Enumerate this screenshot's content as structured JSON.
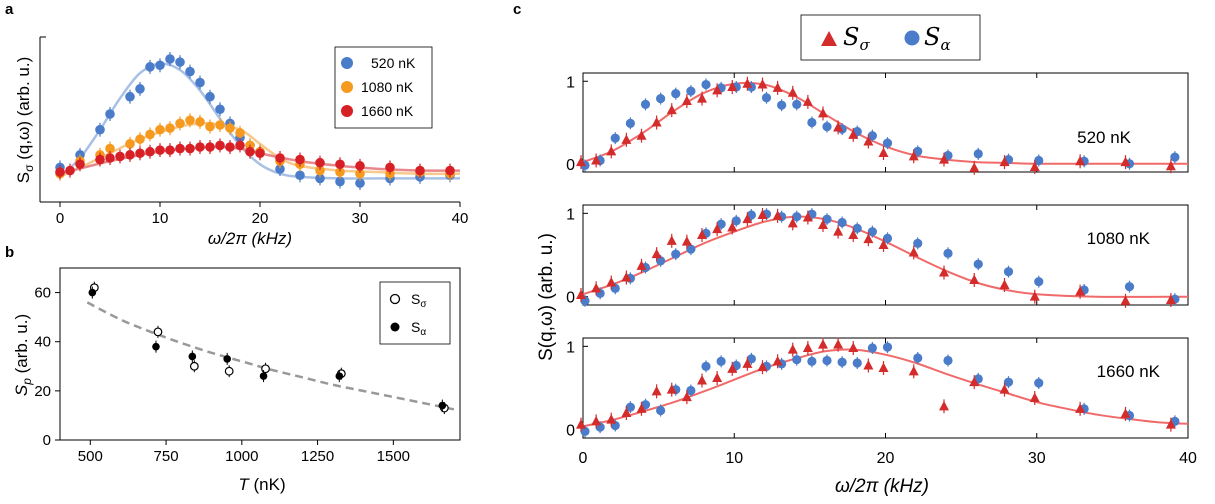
{
  "panels": {
    "a": "a",
    "b": "b",
    "c": "c"
  },
  "colors": {
    "blue": "#4a7cc9",
    "blue_fit": "#a9c0e6",
    "orange": "#f59a1e",
    "orange_fit": "#f7c98c",
    "red": "#d71f26",
    "red_fit": "#e8888b",
    "c_red": "#d42b2b",
    "c_blue": "#4a7cc9",
    "c_fit": "#f06a6a",
    "b_dash": "#999999"
  },
  "chart_data": [
    {
      "id": "a",
      "type": "scatter",
      "xlabel": "ω/2π (kHz)",
      "ylabel_main": "S",
      "ylabel_sub": "σ",
      "ylabel_rest": " (q,ω) (arb. u.)",
      "xlim": [
        0,
        40
      ],
      "ylim": [
        0,
        1.05
      ],
      "xticks": [
        0,
        10,
        20,
        30,
        40
      ],
      "legend_position": "top-right",
      "series": [
        {
          "name": "520 nK",
          "color_key": "blue",
          "x": [
            0,
            2,
            4,
            5,
            7,
            8,
            9,
            10,
            11,
            12,
            13,
            14,
            15,
            16,
            17,
            18,
            19,
            20,
            22,
            24,
            26,
            28,
            30,
            33,
            36,
            39
          ],
          "y": [
            0.22,
            0.3,
            0.46,
            0.56,
            0.67,
            0.72,
            0.86,
            0.87,
            0.91,
            0.89,
            0.83,
            0.76,
            0.67,
            0.59,
            0.5,
            0.41,
            0.36,
            0.32,
            0.21,
            0.17,
            0.15,
            0.13,
            0.12,
            0.15,
            0.16,
            0.17
          ],
          "fit_x": [
            0,
            2,
            4,
            6,
            8,
            10,
            12,
            14,
            16,
            18,
            20,
            22,
            24,
            28,
            32,
            36,
            40
          ],
          "fit_y": [
            0.16,
            0.28,
            0.46,
            0.66,
            0.82,
            0.88,
            0.84,
            0.71,
            0.53,
            0.36,
            0.24,
            0.18,
            0.16,
            0.15,
            0.15,
            0.15,
            0.15
          ]
        },
        {
          "name": "1080 nK",
          "color_key": "orange",
          "x": [
            0,
            2,
            4,
            5,
            7,
            8,
            9,
            10,
            11,
            12,
            13,
            14,
            15,
            16,
            17,
            18,
            19,
            20,
            22,
            24,
            26,
            28,
            30,
            33,
            36,
            39
          ],
          "y": [
            0.18,
            0.26,
            0.3,
            0.34,
            0.37,
            0.4,
            0.43,
            0.46,
            0.47,
            0.5,
            0.52,
            0.51,
            0.48,
            0.49,
            0.47,
            0.44,
            0.36,
            0.32,
            0.26,
            0.24,
            0.2,
            0.19,
            0.18,
            0.18,
            0.19,
            0.18
          ],
          "fit_x": [
            0,
            4,
            8,
            12,
            15,
            18,
            20,
            22,
            24,
            28,
            32,
            36,
            40
          ],
          "fit_y": [
            0.16,
            0.28,
            0.4,
            0.48,
            0.5,
            0.46,
            0.37,
            0.28,
            0.23,
            0.2,
            0.19,
            0.18,
            0.18
          ]
        },
        {
          "name": "1660 nK",
          "color_key": "red",
          "x": [
            0,
            1,
            2,
            4,
            5,
            6,
            7,
            8,
            9,
            10,
            11,
            12,
            13,
            14,
            15,
            16,
            17,
            18,
            19,
            20,
            22,
            24,
            26,
            28,
            30,
            33,
            36,
            39
          ],
          "y": [
            0.19,
            0.2,
            0.24,
            0.27,
            0.28,
            0.29,
            0.3,
            0.31,
            0.32,
            0.33,
            0.33,
            0.34,
            0.34,
            0.35,
            0.35,
            0.36,
            0.35,
            0.36,
            0.32,
            0.31,
            0.28,
            0.27,
            0.25,
            0.24,
            0.23,
            0.22,
            0.2,
            0.2
          ],
          "fit_x": [
            0,
            5,
            10,
            15,
            18,
            20,
            24,
            28,
            32,
            36,
            40
          ],
          "fit_y": [
            0.18,
            0.26,
            0.32,
            0.35,
            0.34,
            0.31,
            0.26,
            0.23,
            0.21,
            0.2,
            0.2
          ]
        }
      ]
    },
    {
      "id": "b",
      "type": "scatter",
      "xlabel_var": "T",
      "xlabel_unit": " (nK)",
      "ylabel_var": "S",
      "ylabel_sub": "p",
      "ylabel_unit": " (arb. u.)",
      "xlim": [
        400,
        1720
      ],
      "ylim": [
        0,
        70
      ],
      "xticks": [
        500,
        750,
        1000,
        1250,
        1500
      ],
      "yticks": [
        0,
        20,
        40,
        60
      ],
      "legend_position": "top-right",
      "series": [
        {
          "name_main": "S",
          "name_sub": "σ",
          "marker": "open",
          "x": [
            510,
            720,
            840,
            955,
            1075,
            1325,
            1665
          ],
          "y": [
            62,
            44,
            30,
            28,
            29,
            27,
            13
          ]
        },
        {
          "name_main": "S",
          "name_sub": "α",
          "marker": "filled",
          "x": [
            510,
            720,
            840,
            955,
            1075,
            1325,
            1665
          ],
          "y": [
            60,
            38,
            34,
            33,
            26,
            26,
            14
          ]
        }
      ],
      "fit_x": [
        490,
        600,
        700,
        800,
        900,
        1000,
        1100,
        1200,
        1300,
        1400,
        1500,
        1600,
        1700
      ],
      "fit_y": [
        56,
        49,
        44,
        39.5,
        35.5,
        32,
        28.5,
        25.5,
        22.5,
        20,
        17.5,
        15,
        12.5
      ]
    },
    {
      "id": "c",
      "type": "scatter",
      "xlabel": "ω/2π (kHz)",
      "ylabel": "S(q,ω) (arb. u.)",
      "xlim": [
        0,
        40
      ],
      "ylim": [
        -0.1,
        1.1
      ],
      "xticks": [
        0,
        10,
        20,
        30,
        40
      ],
      "yticks": [
        0,
        1
      ],
      "legend_position": "top-center",
      "legend": [
        {
          "main": "S",
          "sub": "σ",
          "marker": "triangle",
          "color_key": "c_red"
        },
        {
          "main": "S",
          "sub": "α",
          "marker": "circle",
          "color_key": "c_blue"
        }
      ],
      "subpanels": [
        {
          "label": "520 nK",
          "s_sigma_x": [
            0,
            1,
            2,
            3,
            4,
            5,
            6,
            7,
            8,
            9,
            10,
            11,
            12,
            13,
            14,
            15,
            16,
            17,
            18,
            19,
            20,
            22,
            24,
            26,
            28,
            30,
            33,
            36,
            39
          ],
          "s_sigma_y": [
            0.02,
            0.04,
            0.15,
            0.29,
            0.34,
            0.5,
            0.65,
            0.76,
            0.79,
            0.89,
            0.93,
            0.97,
            0.96,
            0.92,
            0.86,
            0.75,
            0.61,
            0.44,
            0.35,
            0.27,
            0.13,
            0.09,
            0.05,
            -0.05,
            0.02,
            -0.04,
            0.03,
            0.02,
            -0.03
          ],
          "s_alpha_x": [
            0,
            1,
            2,
            3,
            4,
            5,
            6,
            7,
            8,
            9,
            10,
            11,
            12,
            13,
            14,
            15,
            16,
            17,
            18,
            19,
            20,
            22,
            24,
            26,
            28,
            30,
            33,
            36,
            39
          ],
          "s_alpha_y": [
            -0.02,
            0.04,
            0.31,
            0.49,
            0.72,
            0.79,
            0.85,
            0.88,
            0.96,
            0.92,
            0.93,
            0.93,
            0.8,
            0.71,
            0.72,
            0.5,
            0.45,
            0.42,
            0.39,
            0.34,
            0.25,
            0.15,
            0.1,
            0.12,
            0.05,
            0.04,
            0.03,
            0.0,
            0.08
          ],
          "fit_x": [
            0,
            2,
            4,
            6,
            8,
            10,
            12,
            14,
            16,
            18,
            20,
            22,
            24,
            26,
            28,
            30,
            34,
            40
          ],
          "fit_y": [
            0.02,
            0.16,
            0.38,
            0.64,
            0.86,
            0.97,
            0.96,
            0.82,
            0.6,
            0.38,
            0.21,
            0.1,
            0.05,
            0.02,
            0.01,
            0.0,
            0.0,
            0.0
          ]
        },
        {
          "label": "1080 nK",
          "s_sigma_x": [
            0,
            1,
            2,
            3,
            4,
            5,
            6,
            7,
            8,
            9,
            10,
            11,
            12,
            13,
            14,
            15,
            16,
            17,
            18,
            19,
            20,
            22,
            24,
            26,
            28,
            30,
            33,
            36,
            39
          ],
          "s_sigma_y": [
            0.02,
            0.1,
            0.17,
            0.23,
            0.37,
            0.51,
            0.67,
            0.66,
            0.74,
            0.81,
            0.83,
            0.93,
            0.98,
            0.97,
            0.88,
            0.95,
            0.86,
            0.78,
            0.74,
            0.69,
            0.62,
            0.53,
            0.29,
            0.2,
            0.14,
            0.0,
            0.06,
            -0.05,
            -0.04
          ],
          "s_alpha_x": [
            0,
            1,
            2,
            3,
            4,
            5,
            6,
            7,
            8,
            9,
            10,
            11,
            12,
            13,
            14,
            15,
            16,
            17,
            18,
            19,
            20,
            22,
            24,
            26,
            28,
            30,
            33,
            36,
            39
          ],
          "s_alpha_y": [
            -0.05,
            0.04,
            0.1,
            0.22,
            0.35,
            0.43,
            0.51,
            0.57,
            0.76,
            0.87,
            0.91,
            0.98,
            0.99,
            0.96,
            0.96,
            0.99,
            0.93,
            0.89,
            0.82,
            0.78,
            0.7,
            0.64,
            0.52,
            0.39,
            0.3,
            0.18,
            0.08,
            0.12,
            -0.03
          ],
          "fit_x": [
            0,
            2,
            4,
            6,
            8,
            10,
            12,
            14,
            16,
            18,
            20,
            22,
            24,
            26,
            28,
            30,
            34,
            40
          ],
          "fit_y": [
            0.03,
            0.15,
            0.3,
            0.47,
            0.64,
            0.78,
            0.9,
            0.96,
            0.93,
            0.82,
            0.66,
            0.48,
            0.31,
            0.17,
            0.08,
            0.03,
            0.0,
            0.0
          ]
        },
        {
          "label": "1660 nK",
          "s_sigma_x": [
            0,
            1,
            2,
            3,
            4,
            5,
            6,
            7,
            8,
            9,
            10,
            11,
            12,
            13,
            14,
            15,
            16,
            17,
            18,
            19,
            20,
            22,
            24,
            26,
            28,
            30,
            33,
            36,
            39
          ],
          "s_sigma_y": [
            0.06,
            0.1,
            0.12,
            0.2,
            0.25,
            0.46,
            0.48,
            0.39,
            0.59,
            0.62,
            0.73,
            0.79,
            0.75,
            0.82,
            0.96,
            0.98,
            1.02,
            1.02,
            0.98,
            0.77,
            0.74,
            0.7,
            0.28,
            0.57,
            0.48,
            0.38,
            0.25,
            0.19,
            0.06
          ],
          "s_alpha_x": [
            0,
            1,
            2,
            3,
            4,
            5,
            6,
            7,
            8,
            9,
            10,
            11,
            12,
            13,
            14,
            15,
            16,
            17,
            18,
            19,
            20,
            22,
            24,
            26,
            28,
            30,
            33,
            36,
            39
          ],
          "s_alpha_y": [
            -0.02,
            0.03,
            0.05,
            0.27,
            0.3,
            0.23,
            0.48,
            0.47,
            0.76,
            0.82,
            0.77,
            0.85,
            0.76,
            0.79,
            0.84,
            0.82,
            0.83,
            0.81,
            0.8,
            0.98,
            0.99,
            0.86,
            0.83,
            0.61,
            0.57,
            0.56,
            0.25,
            0.17,
            0.1
          ],
          "fit_x": [
            0,
            2,
            4,
            6,
            8,
            10,
            12,
            14,
            16,
            18,
            20,
            22,
            24,
            26,
            28,
            30,
            32,
            34,
            36,
            38,
            40
          ],
          "fit_y": [
            0.04,
            0.12,
            0.22,
            0.33,
            0.46,
            0.6,
            0.74,
            0.85,
            0.94,
            0.96,
            0.9,
            0.8,
            0.67,
            0.55,
            0.44,
            0.33,
            0.25,
            0.18,
            0.13,
            0.09,
            0.07
          ]
        }
      ]
    }
  ]
}
